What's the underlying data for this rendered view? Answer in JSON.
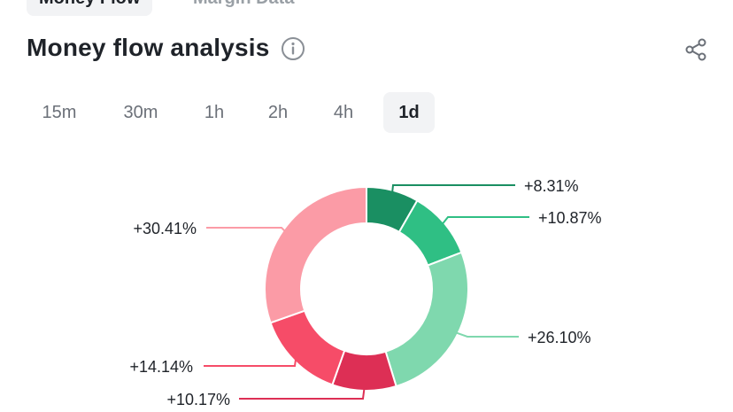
{
  "top_tabs": [
    {
      "label": "Money Flow",
      "active": true
    },
    {
      "label": "Margin Data",
      "active": false
    }
  ],
  "header": {
    "title": "Money flow analysis",
    "info_icon": "info-circle-icon",
    "share_icon": "share-icon"
  },
  "intervals": [
    {
      "label": "15m",
      "active": false
    },
    {
      "label": "30m",
      "active": false
    },
    {
      "label": "1h",
      "active": false
    },
    {
      "label": "2h",
      "active": false
    },
    {
      "label": "4h",
      "active": false
    },
    {
      "label": "1d",
      "active": true
    }
  ],
  "colors": {
    "inflow_large": "#1a8f62",
    "inflow_medium": "#2fbf84",
    "inflow_small": "#7fd8ae",
    "outflow_small": "#dd2f55",
    "outflow_medium": "#f64c68",
    "outflow_large": "#fb9ba6"
  },
  "chart_data": {
    "type": "pie",
    "donut": true,
    "values": [
      8.31,
      10.87,
      26.1,
      10.17,
      14.14,
      30.41
    ],
    "labels": [
      "+8.31%",
      "+10.87%",
      "+26.10%",
      "+10.17%",
      "+14.14%",
      "+30.41%"
    ],
    "colors": [
      "#1a8f62",
      "#2fbf84",
      "#7fd8ae",
      "#dd2f55",
      "#f64c68",
      "#fb9ba6"
    ],
    "start": "top, clockwise"
  }
}
